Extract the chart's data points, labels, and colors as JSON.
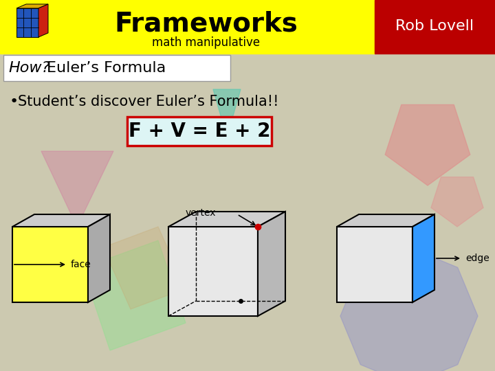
{
  "title": "Frameworks",
  "subtitle": "math manipulative",
  "subtitle2": "How? Euler’s Formula",
  "author": "Rob Lovell",
  "bullet": "Student’s discover Euler’s Formula!!",
  "formula": "F + V = E + 2",
  "bg_color": "#ccc9b0",
  "header_yellow": "#ffff00",
  "header_red": "#bb0000",
  "header_text_color": "#000000",
  "author_text_color": "#ffffff",
  "title_fontsize": 28,
  "subtitle_fontsize": 12,
  "bullet_fontsize": 15,
  "formula_fontsize": 20,
  "formula_box_color": "#ddf5f5",
  "formula_box_edge": "#cc0000",
  "subtitle2_bg": "#ffffff",
  "face_yellow": "#ffff44",
  "edge_blue": "#3399ff",
  "cube_line_color": "#000000",
  "label_fontsize": 10
}
